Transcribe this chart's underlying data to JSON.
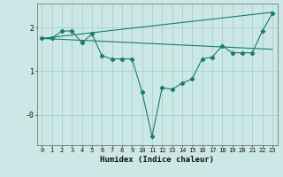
{
  "xlabel": "Humidex (Indice chaleur)",
  "bg_color": "#cce8e6",
  "line_color": "#1a7a6e",
  "grid_color": "#aacfcc",
  "xlim": [
    -0.5,
    23.5
  ],
  "ylim": [
    -0.7,
    2.55
  ],
  "xticks": [
    0,
    1,
    2,
    3,
    4,
    5,
    6,
    7,
    8,
    9,
    10,
    11,
    12,
    13,
    14,
    15,
    16,
    17,
    18,
    19,
    20,
    21,
    22,
    23
  ],
  "yticks": [
    2,
    1,
    0
  ],
  "ytick_labels": [
    "2",
    "1",
    "-0"
  ],
  "line1_x": [
    0,
    1,
    2,
    3,
    4,
    5,
    6,
    7,
    8,
    9,
    10,
    11,
    12,
    13,
    14,
    15,
    16,
    17,
    18,
    19,
    20,
    21,
    22,
    23
  ],
  "line1_y": [
    1.75,
    1.75,
    1.92,
    1.92,
    1.65,
    1.85,
    1.35,
    1.28,
    1.28,
    1.28,
    0.52,
    -0.5,
    0.62,
    0.58,
    0.72,
    0.82,
    1.28,
    1.32,
    1.58,
    1.42,
    1.42,
    1.42,
    1.92,
    2.32
  ],
  "line2_x": [
    0,
    23
  ],
  "line2_y": [
    1.75,
    2.35
  ],
  "line3_x": [
    0,
    23
  ],
  "line3_y": [
    1.75,
    1.5
  ]
}
